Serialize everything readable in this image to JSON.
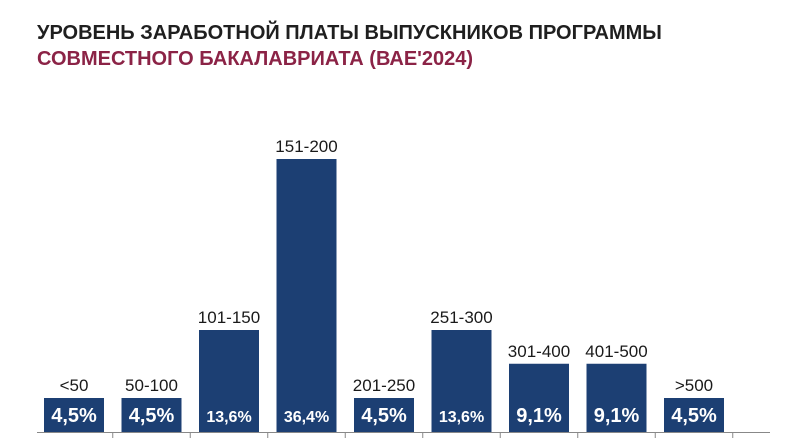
{
  "title": {
    "line1": "УРОВЕНЬ ЗАРАБОТНОЙ ПЛАТЫ ВЫПУСКНИКОВ ПРОГРАММЫ",
    "line2": "СОВМЕСТНОГО БАКАЛАВРИАТА (ВАЕ'2024)",
    "line2_color": "#8b2346"
  },
  "colors": {
    "bar": "#1c3f73",
    "value_text": "#ffffff",
    "category_text": "#1a1a1a",
    "axis": "#888888"
  },
  "chart_data": {
    "type": "bar",
    "title": "УРОВЕНЬ ЗАРАБОТНОЙ ПЛАТЫ ВЫПУСКНИКОВ ПРОГРАММЫ СОВМЕСТНОГО БАКАЛАВРИАТА (ВАЕ'2024)",
    "xlabel": "",
    "ylabel": "",
    "categories": [
      "<50",
      "50-100",
      "101-150",
      "151-200",
      "201-250",
      "251-300",
      "301-400",
      "401-500",
      ">500"
    ],
    "values": [
      4.5,
      4.5,
      13.6,
      36.4,
      4.5,
      13.6,
      9.1,
      9.1,
      4.5
    ],
    "value_labels": [
      "4,5%",
      "4,5%",
      "13,6%",
      "36,4%",
      "4,5%",
      "13,6%",
      "9,1%",
      "9,1%",
      "4,5%"
    ],
    "ylim": [
      0,
      36.4
    ],
    "grid": false,
    "legend": "none"
  }
}
